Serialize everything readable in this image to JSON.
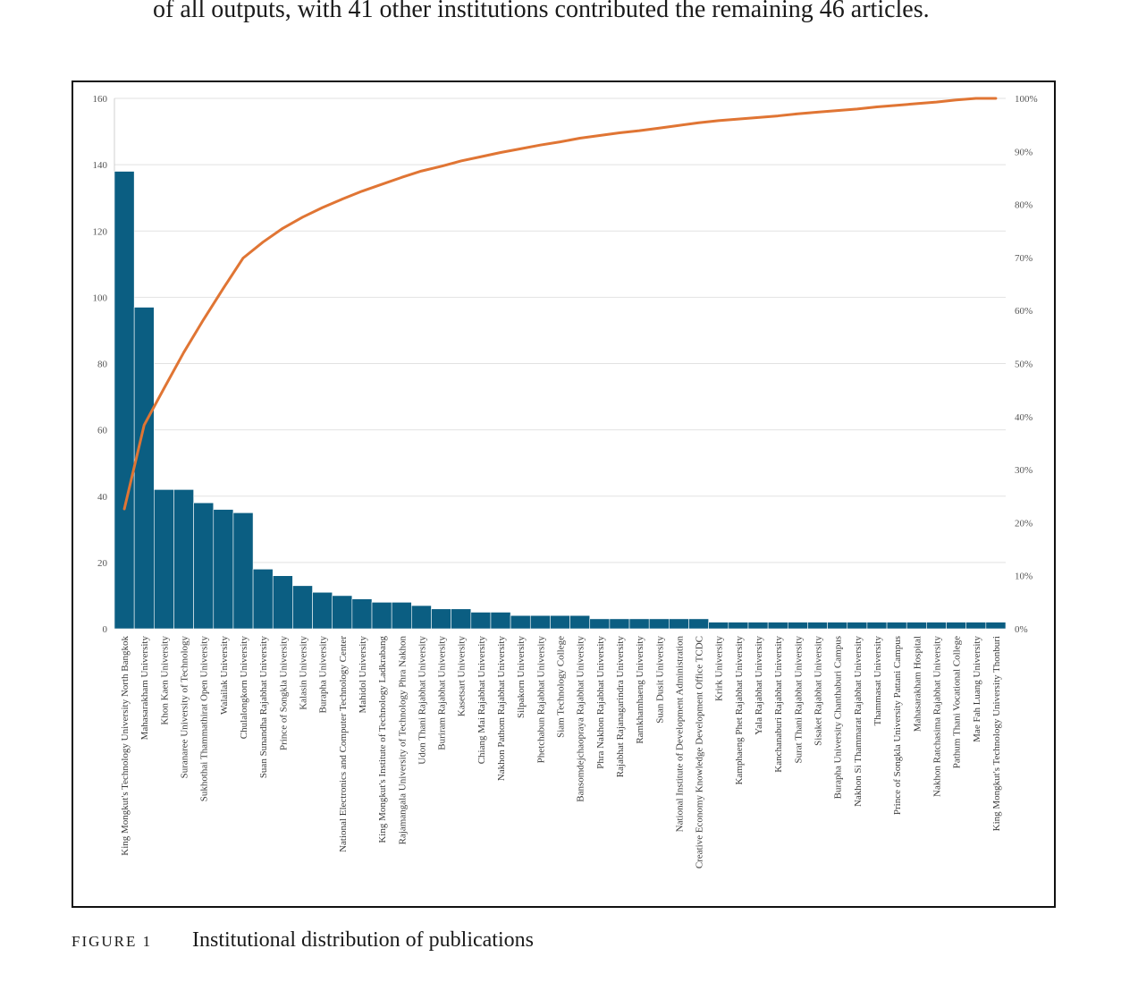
{
  "intro": {
    "text": "of all outputs, with 41 other institutions contributed the remaining 46 articles."
  },
  "figure": {
    "label": "FIGURE 1",
    "caption": "Institutional distribution of publications"
  },
  "chart_data": {
    "type": "bar",
    "title": "",
    "xlabel": "",
    "ylabel": "",
    "ylim": [
      0,
      160
    ],
    "y_ticks": [
      "0",
      "20",
      "40",
      "60",
      "80",
      "100",
      "120",
      "140",
      "160"
    ],
    "y2lim": [
      0,
      100
    ],
    "y2_ticks": [
      "0%",
      "10%",
      "20%",
      "30%",
      "40%",
      "50%",
      "60%",
      "70%",
      "80%",
      "90%",
      "100%"
    ],
    "grid": true,
    "legend": "none",
    "colors": {
      "bars": "#0b5e82",
      "line": "#e07534",
      "grid": "#e2e2e2"
    },
    "categories": [
      "King Mongkut's Technology University North Bangkok",
      "Mahasarakham University",
      "Khon Kaen University",
      "Suranaree University of Technology",
      "Sukhothai Thammathirat Open University",
      "Walailak University",
      "Chulalongkorn University",
      "Suan Sunandha Rajabhat University",
      "Prince of Songkla University",
      "Kalasin University",
      "Burapha University",
      "National Electronics and Computer Technology Center",
      "Mahidol University",
      "King Mongkut's Institute of Technology Ladkrabang",
      "Rajamangala University of Technology Phra Nakhon",
      "Udon Thani Rajabhat University",
      "Buriram Rajabhat University",
      "Kasetsart University",
      "Chiang Mai Rajabhat University",
      "Nakhon Pathom Rajabhat University",
      "Silpakorn University",
      "Phetchabun Rajabhat University",
      "Siam Technology College",
      "Bansomdejchaopraya Rajabhat University",
      "Phra Nakhon Rajabhat University",
      "Rajabhat Rajanagarindra University",
      "Ramkhamhaeng University",
      "Suan Dusit University",
      "National Institute of Development Administration",
      "Creative Economy Knowledge Development Office TCDC",
      "Krirk University",
      "Kamphaeng Phet Rajabhat University",
      "Yala Rajabhat University",
      "Kanchanaburi Rajabhat University",
      "Surat Thani Rajabhat University",
      "Sisaket Rajabhat University",
      "Burapha University Chanthaburi Campus",
      "Nakhon Si Thammarat Rajabhat University",
      "Thammasat University",
      "Prince of Songkla University Pattani Campus",
      "Mahasarakham Hospital",
      "Nakhon Ratchasima Rajabhat University",
      "Pathum Thani Vocational College",
      "Mae Fah Luang University",
      "King Mongkut's Technology University Thonburi"
    ],
    "series": [
      {
        "type": "bar",
        "values": [
          138,
          97,
          42,
          42,
          38,
          36,
          35,
          18,
          16,
          13,
          11,
          10,
          9,
          8,
          8,
          7,
          6,
          6,
          5,
          5,
          4,
          4,
          4,
          4,
          3,
          3,
          3,
          3,
          3,
          3,
          2,
          2,
          2,
          2,
          2,
          2,
          2,
          2,
          2,
          2,
          2,
          2,
          2,
          2,
          2
        ]
      },
      {
        "type": "line",
        "axis": "right",
        "unit": "%",
        "values": [
          22.6,
          38.4,
          45.3,
          52.1,
          58.3,
          64.2,
          69.9,
          72.9,
          75.5,
          77.6,
          79.4,
          81.0,
          82.5,
          83.8,
          85.1,
          86.3,
          87.2,
          88.2,
          89.0,
          89.8,
          90.5,
          91.2,
          91.8,
          92.5,
          93.0,
          93.5,
          93.9,
          94.4,
          94.9,
          95.4,
          95.8,
          96.1,
          96.4,
          96.7,
          97.1,
          97.4,
          97.7,
          98.0,
          98.4,
          98.7,
          99.0,
          99.3,
          99.7,
          100.0,
          100.0
        ]
      }
    ]
  }
}
